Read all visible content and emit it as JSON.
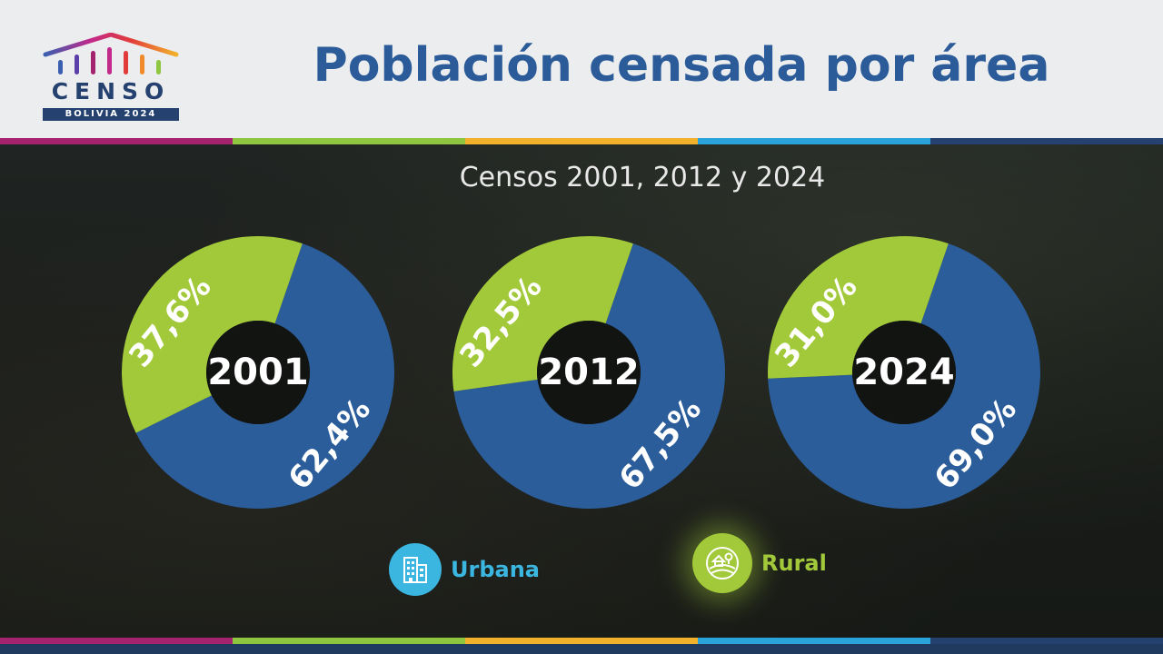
{
  "logo": {
    "word": "CENSO",
    "sub": "BOLIVIA 2024"
  },
  "title": "Población censada por área",
  "subtitle": "Censos 2001, 2012 y 2024",
  "colors": {
    "urban": "#2b5d9b",
    "rural": "#a2c93a",
    "title": "#2b5b98",
    "urban_icon": "#3ab6e0"
  },
  "stripe_colors": [
    "#a5226f",
    "#8ec63f",
    "#f2b12a",
    "#29a3da",
    "#24416f"
  ],
  "legend": {
    "urban": {
      "label": "Urbana",
      "icon": "building-icon"
    },
    "rural": {
      "label": "Rural",
      "icon": "field-icon"
    }
  },
  "chart_data": {
    "type": "pie",
    "title": "Población censada por área",
    "subtitle": "Censos 2001, 2012 y 2024",
    "series_names": [
      "Urbana",
      "Rural"
    ],
    "charts": [
      {
        "year": "2001",
        "urbana": 62.4,
        "rural": 37.6,
        "urbana_label": "62,4%",
        "rural_label": "37,6%"
      },
      {
        "year": "2012",
        "urbana": 67.5,
        "rural": 32.5,
        "urbana_label": "67,5%",
        "rural_label": "32,5%"
      },
      {
        "year": "2024",
        "urbana": 69.0,
        "rural": 31.0,
        "urbana_label": "69,0%",
        "rural_label": "31,0%"
      }
    ]
  }
}
